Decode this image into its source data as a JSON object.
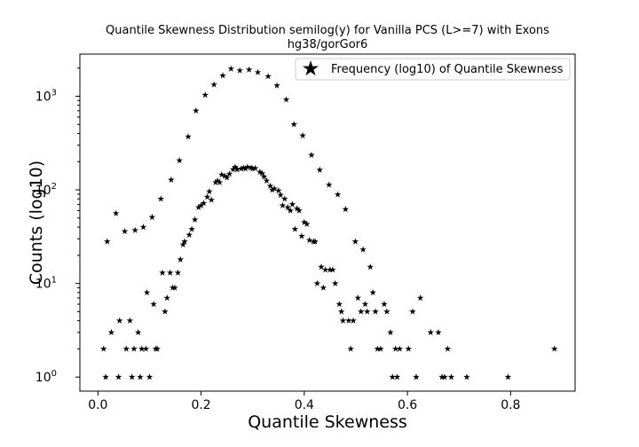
{
  "chart_data": {
    "type": "scatter",
    "title_line1": "Quantile Skewness Distribution semilog(y) for Vanilla PCS (L>=7) with Exons",
    "title_line2": "hg38/gorGor6",
    "xlabel": "Quantile Skewness",
    "ylabel": "Counts (log10)",
    "xlim": [
      -0.035,
      0.925
    ],
    "ylim_log10": [
      -0.15,
      3.45
    ],
    "y_scale": "log",
    "grid": false,
    "legend_position": "top-right",
    "marker": "star",
    "color": "#000000",
    "x_ticks": [
      "0.0",
      "0.2",
      "0.4",
      "0.6",
      "0.8"
    ],
    "x_tick_values": [
      0.0,
      0.2,
      0.4,
      0.6,
      0.8
    ],
    "y_ticks": [
      {
        "base": "10",
        "exp": "0",
        "value": 1
      },
      {
        "base": "10",
        "exp": "1",
        "value": 10
      },
      {
        "base": "10",
        "exp": "2",
        "value": 100
      },
      {
        "base": "10",
        "exp": "3",
        "value": 1000
      }
    ],
    "series": [
      {
        "name": "Frequency (log10) of Quantile Skewness",
        "points": [
          [
            0.011,
            2
          ],
          [
            0.015,
            1
          ],
          [
            0.018,
            28
          ],
          [
            0.026,
            3
          ],
          [
            0.035,
            56
          ],
          [
            0.04,
            1
          ],
          [
            0.042,
            4
          ],
          [
            0.052,
            36
          ],
          [
            0.055,
            2
          ],
          [
            0.062,
            4
          ],
          [
            0.066,
            1
          ],
          [
            0.072,
            37
          ],
          [
            0.07,
            2
          ],
          [
            0.078,
            3
          ],
          [
            0.082,
            1
          ],
          [
            0.085,
            2
          ],
          [
            0.088,
            40
          ],
          [
            0.093,
            2
          ],
          [
            0.095,
            8
          ],
          [
            0.1,
            1
          ],
          [
            0.105,
            51
          ],
          [
            0.108,
            6
          ],
          [
            0.112,
            2
          ],
          [
            0.115,
            2
          ],
          [
            0.122,
            80
          ],
          [
            0.125,
            13
          ],
          [
            0.13,
            5
          ],
          [
            0.134,
            7
          ],
          [
            0.14,
            13
          ],
          [
            0.142,
            128
          ],
          [
            0.145,
            9
          ],
          [
            0.149,
            9
          ],
          [
            0.155,
            13
          ],
          [
            0.158,
            206
          ],
          [
            0.16,
            18
          ],
          [
            0.165,
            26
          ],
          [
            0.168,
            28
          ],
          [
            0.175,
            370
          ],
          [
            0.177,
            33
          ],
          [
            0.182,
            38
          ],
          [
            0.188,
            48
          ],
          [
            0.19,
            700
          ],
          [
            0.195,
            65
          ],
          [
            0.2,
            68
          ],
          [
            0.205,
            72
          ],
          [
            0.208,
            1030
          ],
          [
            0.212,
            84
          ],
          [
            0.216,
            96
          ],
          [
            0.22,
            78
          ],
          [
            0.225,
            1330
          ],
          [
            0.228,
            120
          ],
          [
            0.232,
            125
          ],
          [
            0.236,
            120
          ],
          [
            0.24,
            145
          ],
          [
            0.242,
            1660
          ],
          [
            0.246,
            140
          ],
          [
            0.25,
            135
          ],
          [
            0.255,
            148
          ],
          [
            0.258,
            1960
          ],
          [
            0.262,
            165
          ],
          [
            0.266,
            175
          ],
          [
            0.27,
            165
          ],
          [
            0.275,
            1880
          ],
          [
            0.278,
            168
          ],
          [
            0.282,
            172
          ],
          [
            0.286,
            168
          ],
          [
            0.29,
            175
          ],
          [
            0.293,
            1920
          ],
          [
            0.297,
            172
          ],
          [
            0.3,
            168
          ],
          [
            0.305,
            170
          ],
          [
            0.31,
            1800
          ],
          [
            0.314,
            155
          ],
          [
            0.318,
            150
          ],
          [
            0.322,
            138
          ],
          [
            0.327,
            125
          ],
          [
            0.33,
            1630
          ],
          [
            0.334,
            110
          ],
          [
            0.338,
            100
          ],
          [
            0.342,
            103
          ],
          [
            0.347,
            1300
          ],
          [
            0.35,
            98
          ],
          [
            0.354,
            88
          ],
          [
            0.358,
            68
          ],
          [
            0.362,
            80
          ],
          [
            0.365,
            920
          ],
          [
            0.368,
            65
          ],
          [
            0.373,
            60
          ],
          [
            0.377,
            70
          ],
          [
            0.38,
            500
          ],
          [
            0.382,
            38
          ],
          [
            0.386,
            63
          ],
          [
            0.39,
            60
          ],
          [
            0.395,
            32
          ],
          [
            0.397,
            380
          ],
          [
            0.4,
            45
          ],
          [
            0.405,
            43
          ],
          [
            0.41,
            29
          ],
          [
            0.414,
            235
          ],
          [
            0.418,
            28
          ],
          [
            0.421,
            28
          ],
          [
            0.425,
            10
          ],
          [
            0.43,
            163
          ],
          [
            0.433,
            15
          ],
          [
            0.437,
            9
          ],
          [
            0.441,
            14
          ],
          [
            0.448,
            113
          ],
          [
            0.45,
            14
          ],
          [
            0.455,
            14
          ],
          [
            0.46,
            10
          ],
          [
            0.465,
            89
          ],
          [
            0.468,
            6
          ],
          [
            0.472,
            5
          ],
          [
            0.475,
            4
          ],
          [
            0.48,
            62
          ],
          [
            0.486,
            4
          ],
          [
            0.49,
            2
          ],
          [
            0.495,
            4
          ],
          [
            0.499,
            28
          ],
          [
            0.504,
            7
          ],
          [
            0.51,
            5
          ],
          [
            0.514,
            23
          ],
          [
            0.518,
            6
          ],
          [
            0.522,
            5
          ],
          [
            0.528,
            15
          ],
          [
            0.533,
            8
          ],
          [
            0.538,
            5
          ],
          [
            0.542,
            2
          ],
          [
            0.548,
            2
          ],
          [
            0.555,
            6
          ],
          [
            0.56,
            5
          ],
          [
            0.567,
            3
          ],
          [
            0.571,
            1
          ],
          [
            0.577,
            2
          ],
          [
            0.58,
            1
          ],
          [
            0.585,
            2
          ],
          [
            0.602,
            2
          ],
          [
            0.61,
            5
          ],
          [
            0.617,
            1
          ],
          [
            0.625,
            7
          ],
          [
            0.645,
            3
          ],
          [
            0.66,
            3
          ],
          [
            0.667,
            1
          ],
          [
            0.672,
            1
          ],
          [
            0.678,
            2
          ],
          [
            0.685,
            1
          ],
          [
            0.715,
            1
          ],
          [
            0.795,
            1
          ],
          [
            0.885,
            2
          ]
        ]
      }
    ]
  }
}
